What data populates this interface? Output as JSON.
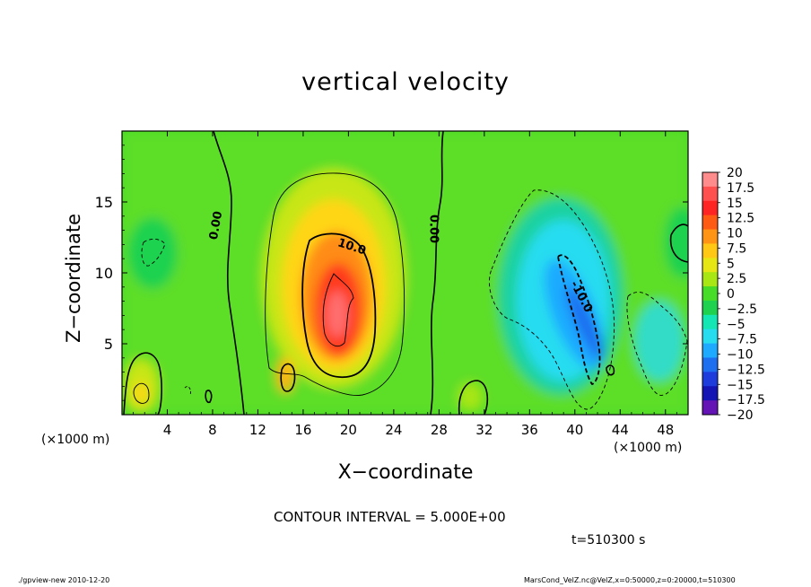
{
  "header": {
    "title": "vertical velocity"
  },
  "axes": {
    "xlabel": "X−coordinate",
    "ylabel": "Z−coordinate",
    "x_unit_left": "(×1000 m)",
    "x_unit_right": "(×1000 m)"
  },
  "annotations": {
    "contour_interval": "CONTOUR INTERVAL = 5.000E+00",
    "time": "t=510300 s",
    "footer_left": "./gpview-new  2010-12-20",
    "footer_right": "MarsCond_VelZ.nc@VelZ,x=0:50000,z=0:20000,t=510300"
  },
  "chart_data": {
    "type": "heatmap",
    "title": "vertical velocity",
    "xlabel": "X−coordinate",
    "ylabel": "Z−coordinate",
    "xlim": [
      0,
      50
    ],
    "ylim": [
      0,
      20
    ],
    "xticks": [
      4,
      8,
      12,
      16,
      20,
      24,
      28,
      32,
      36,
      40,
      44,
      48
    ],
    "yticks": [
      5,
      10,
      15
    ],
    "contour_interval": 5.0,
    "contour_labels": [
      {
        "text": "0.00",
        "x": 8.6,
        "z": 13.3
      },
      {
        "text": "10.0",
        "x": 20.2,
        "z": 11.6
      },
      {
        "text": "0.00",
        "x": 27.2,
        "z": 13.1
      },
      {
        "text": "-10.0",
        "x": 40.3,
        "z": 8.2
      }
    ],
    "features": [
      {
        "kind": "updraft",
        "x_center": 19,
        "z_center": 7.5,
        "peak": 17.5
      },
      {
        "kind": "downdraft",
        "x_center": 40,
        "z_center": 7.5,
        "peak": -12.5
      }
    ],
    "colorbar": {
      "levels": [
        "20",
        "17.5",
        "15",
        "12.5",
        "10",
        "7.5",
        "5",
        "2.5",
        "0",
        "−2.5",
        "−5",
        "−7.5",
        "−10",
        "−12.5",
        "−15",
        "−17.5",
        "−20"
      ],
      "colors": [
        "#ff8c8c",
        "#ff5050",
        "#ff2424",
        "#ff5a14",
        "#ff9414",
        "#ffc814",
        "#e6e614",
        "#a8e614",
        "#46dc28",
        "#1ed250",
        "#14e6b4",
        "#28dcf0",
        "#1eaaff",
        "#1e6ef0",
        "#1e3cdc",
        "#1414b4",
        "#6414b4"
      ]
    }
  }
}
